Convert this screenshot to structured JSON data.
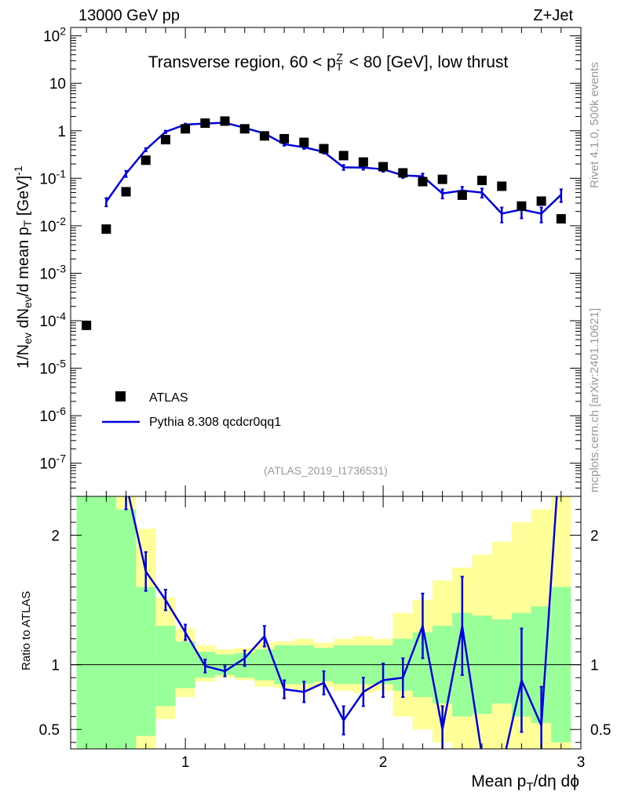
{
  "header": {
    "left": "13000 GeV pp",
    "right": "Z+Jet"
  },
  "side": {
    "top": "Rivet 4.1.0,  500k events",
    "bottom": "mcplots.cern.ch [arXiv:2401.10621]"
  },
  "chart_data": {
    "type": "scatter",
    "title": "Transverse region, 60 < p_T^Z < 80 [GeV], low thrust",
    "analysis": "(ATLAS_2019_I1736531)",
    "xlabel": "Mean p_T/dη dϕ",
    "ylabel_main": "1/N_ev dN_ev/d mean p_T [GeV]^-1",
    "ylabel_ratio": "Ratio to ATLAS",
    "xlim": [
      0.42,
      3.0
    ],
    "ylim_main": [
      2e-08,
      150
    ],
    "ylim_ratio": [
      0.35,
      2.3
    ],
    "x_ticks": [
      1,
      2,
      3
    ],
    "y_ticks_main": [
      "10^2",
      "10",
      "1",
      "10^-1",
      "10^-2",
      "10^-3",
      "10^-4",
      "10^-5",
      "10^-6",
      "10^-7"
    ],
    "y_ticks_ratio": [
      "2",
      "1",
      "0.5"
    ],
    "legend": {
      "data": "ATLAS",
      "mc": "Pythia 8.308 qcdcr0qq1"
    },
    "colors": {
      "mc": "#0000dd",
      "band_inner": "#99ff99",
      "band_outer": "#ffff99"
    },
    "atlas": {
      "x": [
        0.5,
        0.6,
        0.7,
        0.8,
        0.9,
        1.0,
        1.1,
        1.2,
        1.3,
        1.4,
        1.5,
        1.6,
        1.7,
        1.8,
        1.9,
        2.0,
        2.1,
        2.2,
        2.3,
        2.4,
        2.5,
        2.6,
        2.7,
        2.8,
        2.9
      ],
      "y": [
        8e-05,
        0.0085,
        0.052,
        0.24,
        0.65,
        1.1,
        1.45,
        1.6,
        1.1,
        0.78,
        0.68,
        0.57,
        0.42,
        0.3,
        0.22,
        0.175,
        0.13,
        0.085,
        0.095,
        0.044,
        0.09,
        0.068,
        0.026,
        0.033,
        0.014
      ]
    },
    "pythia": {
      "x": [
        0.6,
        0.7,
        0.8,
        0.9,
        1.0,
        1.1,
        1.2,
        1.3,
        1.4,
        1.5,
        1.6,
        1.7,
        1.8,
        1.9,
        2.0,
        2.1,
        2.2,
        2.3,
        2.4,
        2.5,
        2.6,
        2.7,
        2.8,
        2.9
      ],
      "y": [
        0.032,
        0.125,
        0.4,
        0.95,
        1.35,
        1.42,
        1.48,
        1.15,
        0.88,
        0.52,
        0.45,
        0.36,
        0.17,
        0.168,
        0.155,
        0.115,
        0.11,
        0.048,
        0.055,
        0.05,
        0.018,
        0.022,
        0.018,
        0.045
      ],
      "err": [
        0.2,
        0.15,
        0.08,
        0.06,
        0.05,
        0.05,
        0.05,
        0.05,
        0.06,
        0.07,
        0.08,
        0.08,
        0.12,
        0.1,
        0.12,
        0.12,
        0.14,
        0.22,
        0.2,
        0.22,
        0.35,
        0.35,
        0.35,
        0.3
      ]
    },
    "ratio": {
      "x": [
        0.7,
        0.8,
        0.9,
        1.0,
        1.1,
        1.2,
        1.3,
        1.4,
        1.5,
        1.6,
        1.7,
        1.8,
        1.9,
        2.0,
        2.1,
        2.2,
        2.3,
        2.4,
        2.5,
        2.6,
        2.7,
        2.8,
        2.9
      ],
      "y": [
        2.4,
        1.72,
        1.5,
        1.25,
        0.99,
        0.95,
        1.05,
        1.22,
        0.81,
        0.79,
        0.86,
        0.57,
        0.79,
        0.88,
        0.9,
        1.3,
        0.5,
        1.3,
        0.3,
        0.2,
        0.88,
        0.53,
        3.0
      ],
      "err": [
        0.2,
        0.15,
        0.08,
        0.06,
        0.05,
        0.04,
        0.06,
        0.08,
        0.07,
        0.08,
        0.09,
        0.11,
        0.11,
        0.13,
        0.15,
        0.25,
        0.18,
        0.38,
        0.0,
        0.0,
        0.4,
        0.3,
        0.0
      ]
    },
    "bands": {
      "edges": [
        0.45,
        0.55,
        0.65,
        0.75,
        0.85,
        0.95,
        1.05,
        1.15,
        1.25,
        1.35,
        1.45,
        1.55,
        1.65,
        1.75,
        1.85,
        1.95,
        2.05,
        2.15,
        2.25,
        2.35,
        2.45,
        2.55,
        2.65,
        2.75,
        2.85,
        2.95
      ],
      "inner": [
        [
          0.1,
          3.0
        ],
        [
          0.1,
          3.0
        ],
        [
          0.1,
          2.2
        ],
        [
          0.45,
          1.6
        ],
        [
          0.68,
          1.3
        ],
        [
          0.82,
          1.18
        ],
        [
          0.9,
          1.1
        ],
        [
          0.92,
          1.08
        ],
        [
          0.9,
          1.09
        ],
        [
          0.88,
          1.12
        ],
        [
          0.85,
          1.15
        ],
        [
          0.85,
          1.15
        ],
        [
          0.87,
          1.13
        ],
        [
          0.85,
          1.15
        ],
        [
          0.85,
          1.15
        ],
        [
          0.85,
          1.15
        ],
        [
          0.8,
          1.2
        ],
        [
          0.75,
          1.25
        ],
        [
          0.7,
          1.3
        ],
        [
          0.6,
          1.4
        ],
        [
          0.62,
          1.38
        ],
        [
          0.7,
          1.35
        ],
        [
          0.6,
          1.4
        ],
        [
          0.55,
          1.45
        ],
        [
          0.4,
          1.6
        ]
      ],
      "outer": [
        [
          0.1,
          3.0
        ],
        [
          0.1,
          3.0
        ],
        [
          0.1,
          2.4
        ],
        [
          0.1,
          2.05
        ],
        [
          0.58,
          1.52
        ],
        [
          0.75,
          1.28
        ],
        [
          0.87,
          1.15
        ],
        [
          0.9,
          1.12
        ],
        [
          0.88,
          1.13
        ],
        [
          0.83,
          1.17
        ],
        [
          0.82,
          1.18
        ],
        [
          0.8,
          1.2
        ],
        [
          0.83,
          1.17
        ],
        [
          0.8,
          1.2
        ],
        [
          0.78,
          1.22
        ],
        [
          0.8,
          1.2
        ],
        [
          0.6,
          1.4
        ],
        [
          0.5,
          1.5
        ],
        [
          0.4,
          1.65
        ],
        [
          0.3,
          1.75
        ],
        [
          0.2,
          1.85
        ],
        [
          0.2,
          1.95
        ],
        [
          0.2,
          2.1
        ],
        [
          0.2,
          2.2
        ],
        [
          0.2,
          2.3
        ]
      ]
    }
  }
}
